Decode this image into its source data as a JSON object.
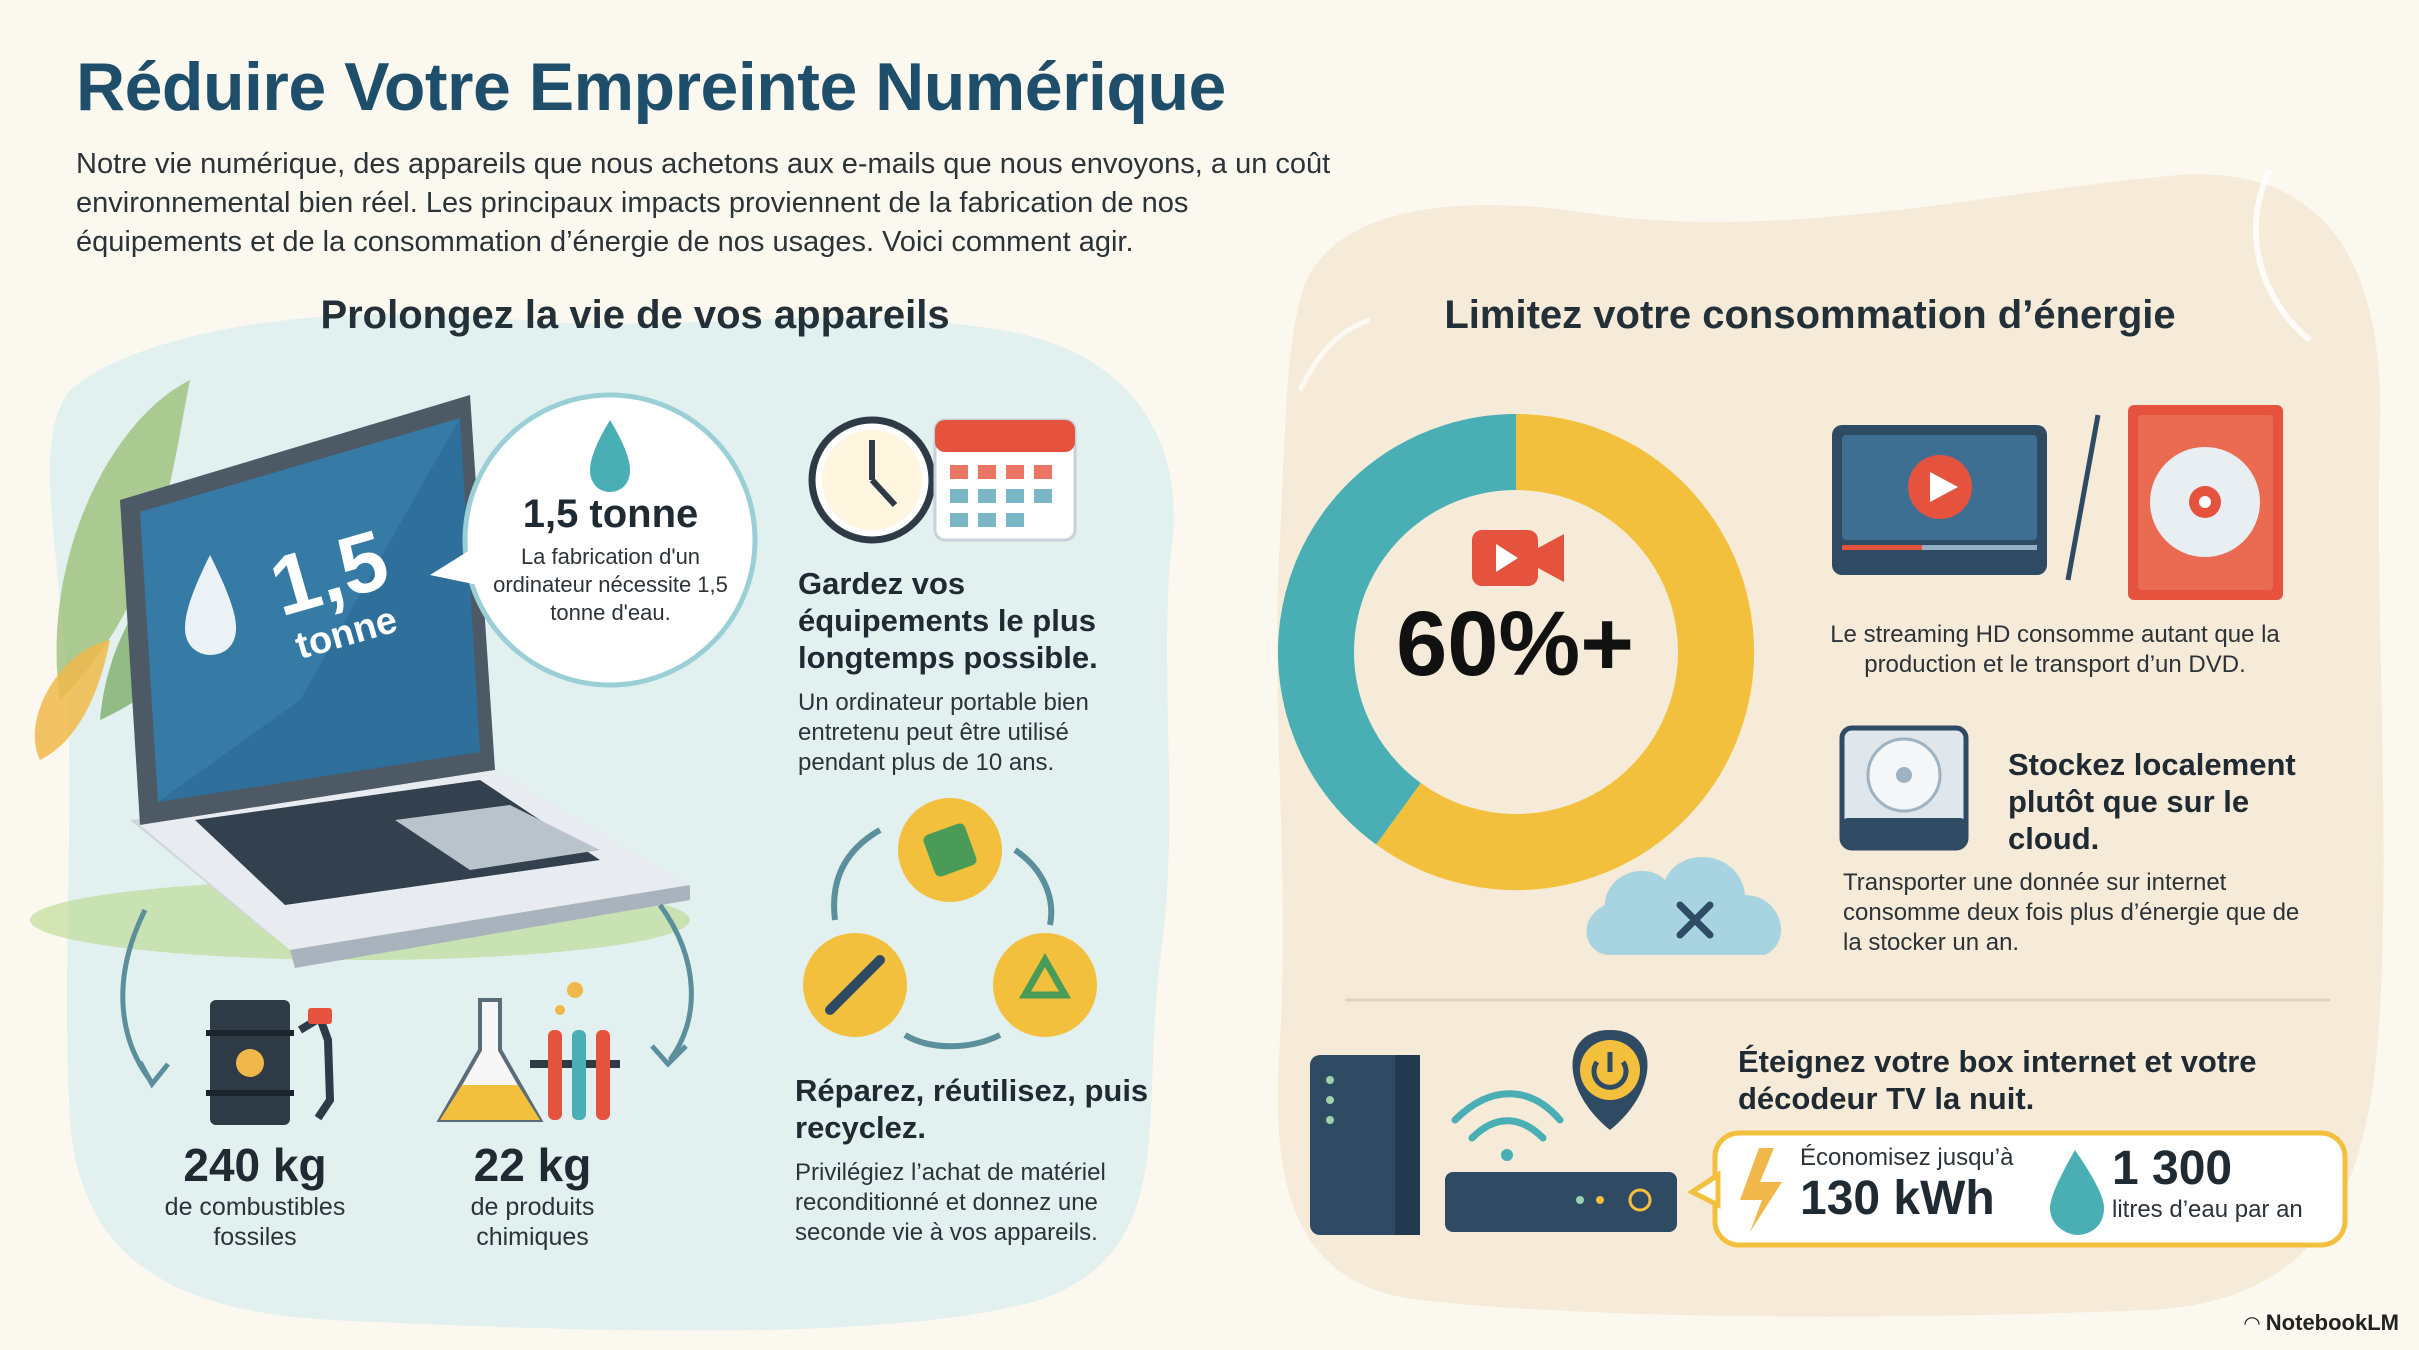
{
  "title": "Réduire Votre Empreinte Numérique",
  "intro": "Notre vie numérique, des appareils que nous achetons aux e-mails que nous envoyons, a un coût environnemental bien réel. Les principaux impacts proviennent de la fabrication de nos équipements et de la consommation d’énergie de nos usages. Voici comment agir.",
  "left": {
    "title": "Prolongez la vie de vos appareils",
    "laptop_screen_value": "1,5",
    "laptop_screen_unit": "tonne",
    "bubble_value": "1,5 tonne",
    "bubble_text": "La fabrication d'un ordinateur nécessite 1,5 tonne d'eau.",
    "fuel_value": "240 kg",
    "fuel_label": "de combustibles fossiles",
    "chem_value": "22 kg",
    "chem_label": "de produits chimiques",
    "keep_heading": "Gardez vos équipements le plus longtemps possible.",
    "keep_text": "Un ordinateur portable bien entretenu peut être utilisé pendant plus de 10 ans.",
    "repair_heading": "Réparez, réutilisez, puis recyclez.",
    "repair_text": "Privilégiez l’achat de matériel reconditionné et donnez une seconde vie à vos appareils."
  },
  "right": {
    "title": "Limitez votre consommation d’énergie",
    "donut_label": "60%+",
    "streaming_text": "Le streaming HD consomme autant que la production et le transport d’un DVD.",
    "local_heading": "Stockez localement plutôt que sur le cloud.",
    "local_text": "Transporter une donnée sur internet consomme deux fois plus d’énergie que de la stocker un an.",
    "box_heading": "Éteignez votre box internet et votre décodeur TV la nuit.",
    "save_prefix": "Économisez jusqu’à",
    "save_kwh": "130 kWh",
    "save_water": "1 300",
    "save_water_label": "litres d’eau par an"
  },
  "chart_data": {
    "type": "pie",
    "values": [
      60,
      40
    ],
    "labels": [
      "60%+",
      ""
    ],
    "colors": [
      "#f2c03c",
      "#4aaeb5"
    ],
    "title": ""
  },
  "brand": "NotebookLM",
  "colors": {
    "title": "#1f4e6b",
    "teal": "#4aaeb5",
    "yellow": "#f2c03c",
    "red": "#e5533f",
    "navy": "#2f4a63"
  }
}
